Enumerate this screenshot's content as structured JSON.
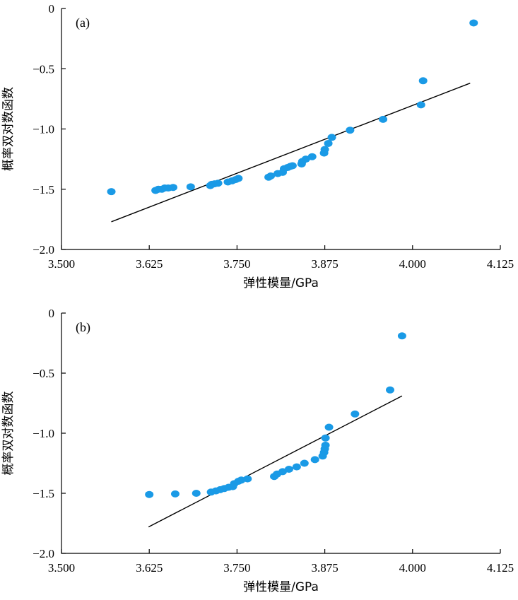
{
  "chart_data": [
    {
      "type": "scatter",
      "panel_label": "(a)",
      "xlabel": "弹性模量/GPa",
      "ylabel": "概率双对数函数",
      "xlim": [
        3.5,
        4.125
      ],
      "ylim": [
        -2.0,
        0
      ],
      "xticks": [
        "3.500",
        "3.625",
        "3.750",
        "3.875",
        "4.000",
        "4.125"
      ],
      "yticks": [
        "0",
        "−0.5",
        "−1.0",
        "−1.5",
        "−2.0"
      ],
      "point_color": "#1a9ae6",
      "points": [
        [
          3.571,
          -1.52
        ],
        [
          3.634,
          -1.51
        ],
        [
          3.638,
          -1.5
        ],
        [
          3.643,
          -1.5
        ],
        [
          3.647,
          -1.49
        ],
        [
          3.652,
          -1.49
        ],
        [
          3.659,
          -1.485
        ],
        [
          3.684,
          -1.48
        ],
        [
          3.712,
          -1.47
        ],
        [
          3.714,
          -1.46
        ],
        [
          3.718,
          -1.455
        ],
        [
          3.723,
          -1.45
        ],
        [
          3.737,
          -1.44
        ],
        [
          3.743,
          -1.43
        ],
        [
          3.748,
          -1.42
        ],
        [
          3.752,
          -1.41
        ],
        [
          3.795,
          -1.4
        ],
        [
          3.798,
          -1.39
        ],
        [
          3.808,
          -1.37
        ],
        [
          3.815,
          -1.36
        ],
        [
          3.817,
          -1.33
        ],
        [
          3.822,
          -1.32
        ],
        [
          3.826,
          -1.31
        ],
        [
          3.829,
          -1.305
        ],
        [
          3.842,
          -1.29
        ],
        [
          3.843,
          -1.27
        ],
        [
          3.848,
          -1.25
        ],
        [
          3.857,
          -1.23
        ],
        [
          3.874,
          -1.2
        ],
        [
          3.875,
          -1.17
        ],
        [
          3.88,
          -1.12
        ],
        [
          3.885,
          -1.07
        ],
        [
          3.911,
          -1.01
        ],
        [
          3.958,
          -0.92
        ],
        [
          4.012,
          -0.8
        ],
        [
          4.015,
          -0.6
        ],
        [
          4.087,
          -0.12
        ]
      ],
      "fit_line": {
        "x": [
          3.571,
          4.082
        ],
        "y": [
          -1.77,
          -0.62
        ]
      }
    },
    {
      "type": "scatter",
      "panel_label": "(b)",
      "xlabel": "弹性模量/GPa",
      "ylabel": "概率双对数函数",
      "xlim": [
        3.5,
        4.125
      ],
      "ylim": [
        -2.0,
        0
      ],
      "xticks": [
        "3.500",
        "3.625",
        "3.750",
        "3.875",
        "4.000",
        "4.125"
      ],
      "yticks": [
        "0",
        "−0.5",
        "−1.0",
        "−1.5",
        "−2.0"
      ],
      "point_color": "#1a9ae6",
      "points": [
        [
          3.625,
          -1.51
        ],
        [
          3.662,
          -1.505
        ],
        [
          3.692,
          -1.5
        ],
        [
          3.713,
          -1.49
        ],
        [
          3.72,
          -1.48
        ],
        [
          3.726,
          -1.47
        ],
        [
          3.732,
          -1.46
        ],
        [
          3.738,
          -1.45
        ],
        [
          3.744,
          -1.445
        ],
        [
          3.746,
          -1.42
        ],
        [
          3.752,
          -1.4
        ],
        [
          3.756,
          -1.39
        ],
        [
          3.765,
          -1.38
        ],
        [
          3.803,
          -1.36
        ],
        [
          3.807,
          -1.34
        ],
        [
          3.815,
          -1.32
        ],
        [
          3.824,
          -1.3
        ],
        [
          3.835,
          -1.28
        ],
        [
          3.846,
          -1.25
        ],
        [
          3.861,
          -1.22
        ],
        [
          3.872,
          -1.19
        ],
        [
          3.874,
          -1.16
        ],
        [
          3.875,
          -1.13
        ],
        [
          3.876,
          -1.1
        ],
        [
          3.876,
          -1.04
        ],
        [
          3.881,
          -0.95
        ],
        [
          3.918,
          -0.84
        ],
        [
          3.968,
          -0.64
        ],
        [
          3.985,
          -0.19
        ]
      ],
      "fit_line": {
        "x": [
          3.624,
          3.985
        ],
        "y": [
          -1.78,
          -0.69
        ]
      }
    }
  ]
}
